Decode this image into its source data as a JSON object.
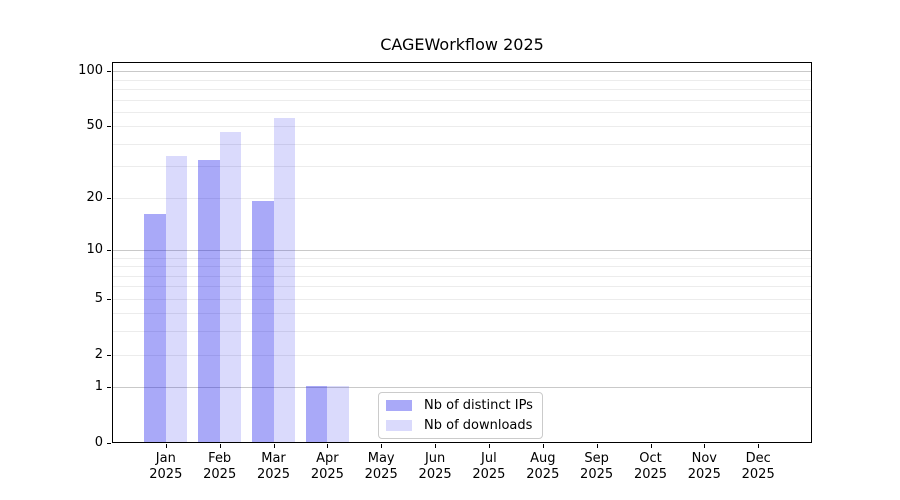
{
  "chart_data": {
    "type": "bar",
    "title": "CAGEWorkflow 2025",
    "xlabel": "",
    "ylabel": "",
    "categories": [
      "Jan",
      "Feb",
      "Mar",
      "Apr",
      "May",
      "Jun",
      "Jul",
      "Aug",
      "Sep",
      "Oct",
      "Nov",
      "Dec"
    ],
    "year_label": "2025",
    "series": [
      {
        "name": "Nb of distinct IPs",
        "color": "#0a0aeb59",
        "values": [
          16,
          32,
          19,
          1,
          0,
          0,
          0,
          0,
          0,
          0,
          0,
          0
        ]
      },
      {
        "name": "Nb of downloads",
        "color": "#0a0aeb26",
        "values": [
          34,
          46,
          55,
          1,
          0,
          0,
          0,
          0,
          0,
          0,
          0,
          0
        ]
      }
    ],
    "yscale": "log10(1+x)",
    "yticks": [
      0,
      1,
      2,
      5,
      10,
      20,
      50,
      100
    ],
    "ylim": [
      0,
      112
    ],
    "grid": {
      "major_values": [
        1,
        10,
        100
      ],
      "minor_values": [
        2,
        3,
        4,
        5,
        6,
        7,
        8,
        9,
        20,
        30,
        40,
        50,
        60,
        70,
        80,
        90
      ],
      "major_color": "#c9c9c9",
      "minor_color": "#ececec"
    },
    "legend_position": "lower center",
    "axis_color": "#000000",
    "background_color": "#ffffff"
  }
}
